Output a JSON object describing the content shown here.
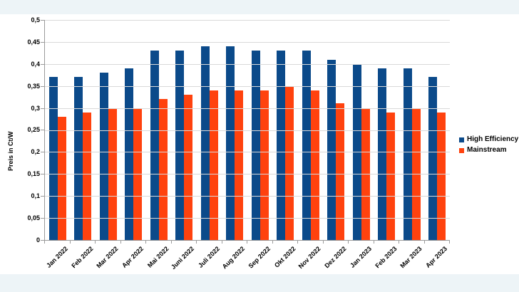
{
  "chart_data": {
    "type": "bar",
    "title": "",
    "xlabel": "",
    "ylabel": "Preis in Ct/W",
    "ylim": [
      0,
      0.5
    ],
    "ytick_step": 0.05,
    "ytick_labels": [
      "0",
      "0,05",
      "0,1",
      "0,15",
      "0,2",
      "0,25",
      "0,3",
      "0,35",
      "0,4",
      "0,45",
      "0,5"
    ],
    "decimal_separator": ",",
    "grid": true,
    "legend_position": "right",
    "categories": [
      "Jan 2022",
      "Feb 2022",
      "Mar 2022",
      "Apr 2022",
      "Mai 2022",
      "Juni 2022",
      "Juli 2022",
      "Aug 2022",
      "Sep 2022",
      "Okt 2022",
      "Nov 2022",
      "Dez 2022",
      "Jan 2023",
      "Feb 2023",
      "Mar 2023",
      "Apr 2023"
    ],
    "series": [
      {
        "name": "High Efficiency",
        "color": "#0b4a8a",
        "values": [
          0.37,
          0.37,
          0.38,
          0.39,
          0.43,
          0.43,
          0.44,
          0.44,
          0.43,
          0.43,
          0.43,
          0.41,
          0.4,
          0.39,
          0.39,
          0.37
        ]
      },
      {
        "name": "Mainstream",
        "color": "#ff420e",
        "values": [
          0.28,
          0.29,
          0.3,
          0.3,
          0.32,
          0.33,
          0.34,
          0.34,
          0.34,
          0.35,
          0.34,
          0.31,
          0.3,
          0.29,
          0.3,
          0.29
        ]
      }
    ]
  }
}
